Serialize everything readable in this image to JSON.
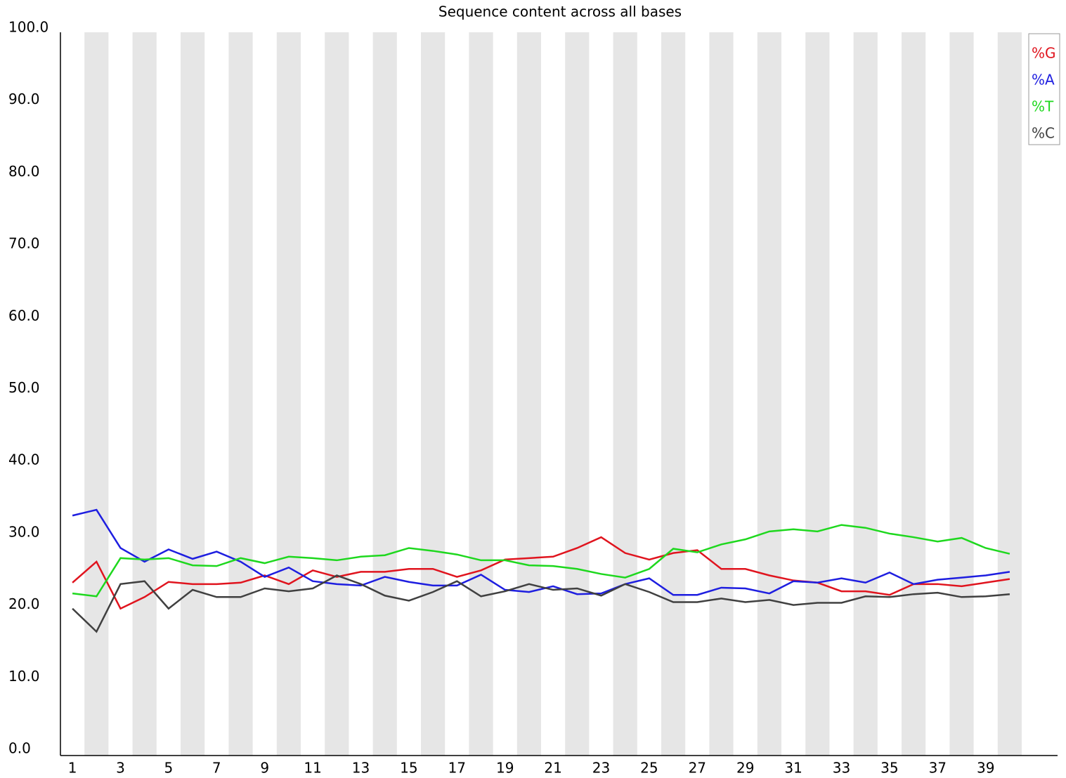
{
  "chart_data": {
    "type": "line",
    "title": "Sequence content across all bases",
    "categories": [
      1,
      null,
      3,
      null,
      5,
      null,
      7,
      null,
      9,
      null,
      11,
      null,
      13,
      null,
      15,
      null,
      17,
      null,
      19,
      null,
      21,
      null,
      23,
      null,
      25,
      null,
      27,
      null,
      29,
      null,
      31,
      null,
      33,
      null,
      35,
      null,
      37,
      null,
      39,
      null
    ],
    "series": [
      {
        "name": "%G",
        "color": "#e0141e",
        "values": [
          23.1,
          26.0,
          19.5,
          21.1,
          23.2,
          22.9,
          22.9,
          23.1,
          24.1,
          22.9,
          24.8,
          23.9,
          24.6,
          24.6,
          25.0,
          25.0,
          23.9,
          24.8,
          26.3,
          26.5,
          26.7,
          27.9,
          29.4,
          27.2,
          26.3,
          27.2,
          27.6,
          25.0,
          25.0,
          24.1,
          23.4,
          23.1,
          21.9,
          21.9,
          21.4,
          22.9,
          22.9,
          22.6,
          23.1,
          23.6
        ]
      },
      {
        "name": "%A",
        "color": "#1e1ee0",
        "values": [
          32.4,
          33.2,
          27.9,
          26.0,
          27.7,
          26.4,
          27.4,
          26.0,
          23.9,
          25.2,
          23.3,
          22.9,
          22.7,
          23.9,
          23.2,
          22.7,
          22.7,
          24.2,
          22.1,
          21.8,
          22.6,
          21.5,
          21.6,
          22.9,
          23.7,
          21.4,
          21.4,
          22.4,
          22.3,
          21.6,
          23.3,
          23.1,
          23.7,
          23.1,
          24.5,
          22.9,
          23.5,
          23.8,
          24.1,
          24.6
        ]
      },
      {
        "name": "%T",
        "color": "#1ed81e",
        "values": [
          21.6,
          21.2,
          26.5,
          26.3,
          26.5,
          25.5,
          25.4,
          26.5,
          25.8,
          26.7,
          26.5,
          26.2,
          26.7,
          26.9,
          27.9,
          27.5,
          27.0,
          26.2,
          26.2,
          25.5,
          25.4,
          25.0,
          24.3,
          23.8,
          25.0,
          27.8,
          27.3,
          28.4,
          29.1,
          30.2,
          30.5,
          30.2,
          31.1,
          30.7,
          29.9,
          29.4,
          28.8,
          29.3,
          27.9,
          27.1
        ]
      },
      {
        "name": "%C",
        "color": "#404040",
        "values": [
          19.5,
          16.3,
          22.9,
          23.3,
          19.5,
          22.1,
          21.1,
          21.1,
          22.3,
          21.9,
          22.3,
          24.1,
          22.9,
          21.3,
          20.6,
          21.8,
          23.3,
          21.2,
          21.9,
          22.9,
          22.1,
          22.3,
          21.3,
          22.9,
          21.8,
          20.4,
          20.4,
          20.9,
          20.4,
          20.7,
          20.0,
          20.3,
          20.3,
          21.2,
          21.1,
          21.5,
          21.7,
          21.1,
          21.2,
          21.5
        ]
      }
    ],
    "ylim": [
      0,
      100
    ],
    "yticks": [
      {
        "value": 0,
        "label": "0.0"
      },
      {
        "value": 10,
        "label": "10.0"
      },
      {
        "value": 20,
        "label": "20.0"
      },
      {
        "value": 30,
        "label": "30.0"
      },
      {
        "value": 40,
        "label": "40.0"
      },
      {
        "value": 50,
        "label": "50.0"
      },
      {
        "value": 60,
        "label": "60.0"
      },
      {
        "value": 70,
        "label": "70.0"
      },
      {
        "value": 80,
        "label": "80.0"
      },
      {
        "value": 90,
        "label": "90.0"
      },
      {
        "value": 100,
        "label": "100.0"
      }
    ],
    "legend": "top-right"
  }
}
